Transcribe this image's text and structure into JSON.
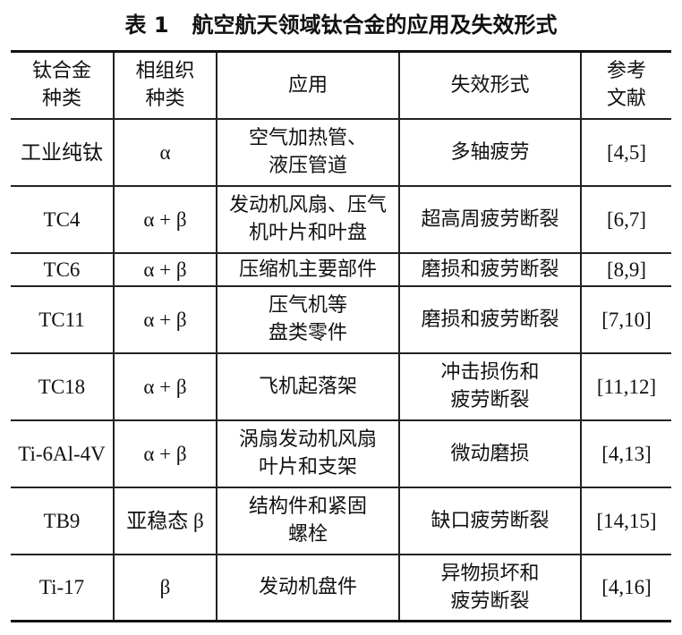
{
  "title": {
    "number": "表 1",
    "text": "航空航天领域钛合金的应用及失效形式"
  },
  "table": {
    "headers": [
      "钛合金\n种类",
      "相组织\n种类",
      "应用",
      "失效形式",
      "参考\n文献"
    ],
    "rows": [
      [
        "工业纯钛",
        "α",
        "空气加热管、\n液压管道",
        "多轴疲劳",
        "[4,5]"
      ],
      [
        "TC4",
        "α + β",
        "发动机风扇、压气\n机叶片和叶盘",
        "超高周疲劳断裂",
        "[6,7]"
      ],
      [
        "TC6",
        "α + β",
        "压缩机主要部件",
        "磨损和疲劳断裂",
        "[8,9]"
      ],
      [
        "TC11",
        "α + β",
        "压气机等\n盘类零件",
        "磨损和疲劳断裂",
        "[7,10]"
      ],
      [
        "TC18",
        "α + β",
        "飞机起落架",
        "冲击损伤和\n疲劳断裂",
        "[11,12]"
      ],
      [
        "Ti-6Al-4V",
        "α + β",
        "涡扇发动机风扇\n叶片和支架",
        "微动磨损",
        "[4,13]"
      ],
      [
        "TB9",
        "亚稳态 β",
        "结构件和紧固\n螺栓",
        "缺口疲劳断裂",
        "[14,15]"
      ],
      [
        "Ti-17",
        "β",
        "发动机盘件",
        "异物损坏和\n疲劳断裂",
        "[4,16]"
      ]
    ]
  }
}
